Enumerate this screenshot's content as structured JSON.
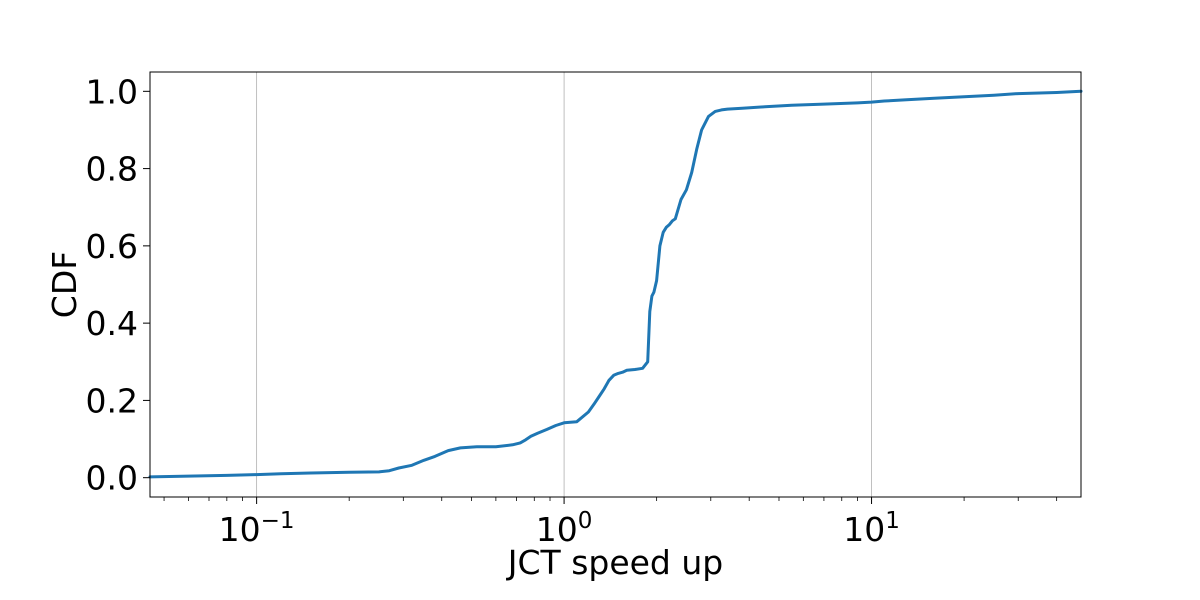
{
  "chart_data": {
    "type": "line",
    "xlabel": "JCT speed up",
    "ylabel": "CDF",
    "xscale": "log",
    "xlim": [
      0.045,
      48
    ],
    "ylim": [
      -0.05,
      1.05
    ],
    "grid": {
      "x": true,
      "y": false
    },
    "x_ticks": [
      {
        "value": 0.1,
        "base": "10",
        "exp": "−1"
      },
      {
        "value": 1,
        "base": "10",
        "exp": "0"
      },
      {
        "value": 10,
        "base": "10",
        "exp": "1"
      }
    ],
    "y_ticks": [
      {
        "value": 0.0,
        "label": "0.0"
      },
      {
        "value": 0.2,
        "label": "0.2"
      },
      {
        "value": 0.4,
        "label": "0.4"
      },
      {
        "value": 0.6,
        "label": "0.6"
      },
      {
        "value": 0.8,
        "label": "0.8"
      },
      {
        "value": 1.0,
        "label": "1.0"
      }
    ],
    "series": [
      {
        "color": "#1f77b4",
        "x": [
          0.045,
          0.06,
          0.08,
          0.1,
          0.12,
          0.15,
          0.2,
          0.25,
          0.27,
          0.29,
          0.32,
          0.35,
          0.38,
          0.42,
          0.46,
          0.52,
          0.6,
          0.68,
          0.72,
          0.75,
          0.78,
          0.82,
          0.88,
          0.94,
          1.0,
          1.1,
          1.2,
          1.25,
          1.3,
          1.35,
          1.4,
          1.45,
          1.5,
          1.55,
          1.6,
          1.7,
          1.8,
          1.87,
          1.9,
          1.93,
          1.96,
          2.0,
          2.05,
          2.1,
          2.15,
          2.2,
          2.25,
          2.3,
          2.4,
          2.5,
          2.6,
          2.7,
          2.8,
          2.95,
          3.1,
          3.25,
          3.4,
          3.8,
          4.5,
          5.5,
          7.0,
          9.0,
          10.0,
          11.0,
          13.0,
          16.0,
          20.0,
          25.0,
          30.0,
          40.0,
          48.0
        ],
        "y": [
          0.002,
          0.004,
          0.006,
          0.008,
          0.01,
          0.012,
          0.014,
          0.015,
          0.018,
          0.025,
          0.032,
          0.045,
          0.055,
          0.07,
          0.077,
          0.08,
          0.08,
          0.085,
          0.09,
          0.098,
          0.107,
          0.115,
          0.125,
          0.135,
          0.142,
          0.145,
          0.17,
          0.19,
          0.21,
          0.23,
          0.252,
          0.265,
          0.27,
          0.273,
          0.278,
          0.28,
          0.283,
          0.3,
          0.43,
          0.47,
          0.48,
          0.51,
          0.6,
          0.635,
          0.648,
          0.655,
          0.665,
          0.67,
          0.72,
          0.745,
          0.79,
          0.85,
          0.9,
          0.935,
          0.948,
          0.952,
          0.954,
          0.956,
          0.96,
          0.964,
          0.967,
          0.97,
          0.972,
          0.975,
          0.978,
          0.982,
          0.986,
          0.99,
          0.994,
          0.997,
          1.0
        ]
      }
    ]
  }
}
